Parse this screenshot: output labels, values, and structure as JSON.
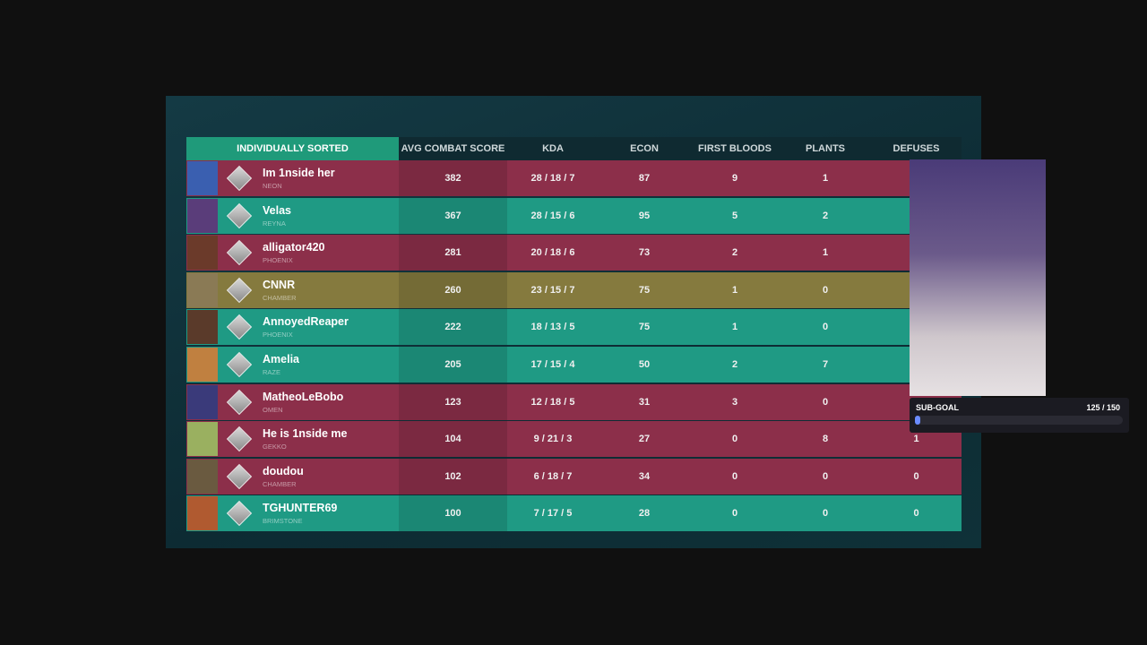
{
  "header": [
    "INDIVIDUALLY SORTED",
    "AVG COMBAT SCORE",
    "KDA",
    "ECON",
    "FIRST BLOODS",
    "PLANTS",
    "DEFUSES"
  ],
  "rows": [
    {
      "name": "Im 1nside her",
      "agent": "NEON",
      "acs": 382,
      "kda": "28 / 18 / 7",
      "econ": 87,
      "first_bloods": 9,
      "plants": 1,
      "defuses": null,
      "color": "#8c2f4a"
    },
    {
      "name": "Velas",
      "agent": "REYNA",
      "acs": 367,
      "kda": "28 / 15 / 6",
      "econ": 95,
      "first_bloods": 5,
      "plants": 2,
      "defuses": null,
      "color": "#1f9a84"
    },
    {
      "name": "alligator420",
      "agent": "PHOENIX",
      "acs": 281,
      "kda": "20 / 18 / 6",
      "econ": 73,
      "first_bloods": 2,
      "plants": 1,
      "defuses": null,
      "color": "#8c2f4a"
    },
    {
      "name": "CNNR",
      "agent": "CHAMBER",
      "acs": 260,
      "kda": "23 / 15 / 7",
      "econ": 75,
      "first_bloods": 1,
      "plants": 0,
      "defuses": null,
      "color": "#857a3e"
    },
    {
      "name": "AnnoyedReaper",
      "agent": "PHOENIX",
      "acs": 222,
      "kda": "18 / 13 / 5",
      "econ": 75,
      "first_bloods": 1,
      "plants": 0,
      "defuses": null,
      "color": "#1f9a84"
    },
    {
      "name": "Amelia",
      "agent": "RAZE",
      "acs": 205,
      "kda": "17 / 15 / 4",
      "econ": 50,
      "first_bloods": 2,
      "plants": 7,
      "defuses": null,
      "color": "#1f9a84"
    },
    {
      "name": "MatheoLeBobo",
      "agent": "OMEN",
      "acs": 123,
      "kda": "12 / 18 / 5",
      "econ": 31,
      "first_bloods": 3,
      "plants": 0,
      "defuses": null,
      "color": "#8c2f4a"
    },
    {
      "name": "He is 1nside me",
      "agent": "GEKKO",
      "acs": 104,
      "kda": "9 / 21 / 3",
      "econ": 27,
      "first_bloods": 0,
      "plants": 8,
      "defuses": 1,
      "color": "#8c2f4a"
    },
    {
      "name": "doudou",
      "agent": "CHAMBER",
      "acs": 102,
      "kda": "6 / 18 / 7",
      "econ": 34,
      "first_bloods": 0,
      "plants": 0,
      "defuses": 0,
      "color": "#8c2f4a"
    },
    {
      "name": "TGHUNTER69",
      "agent": "BRIMSTONE",
      "acs": 100,
      "kda": "7 / 17 / 5",
      "econ": 28,
      "first_bloods": 0,
      "plants": 0,
      "defuses": 0,
      "color": "#1f9a84"
    }
  ],
  "sub_goal": {
    "label": "SUB-GOAL",
    "progress": "125 / 150"
  }
}
